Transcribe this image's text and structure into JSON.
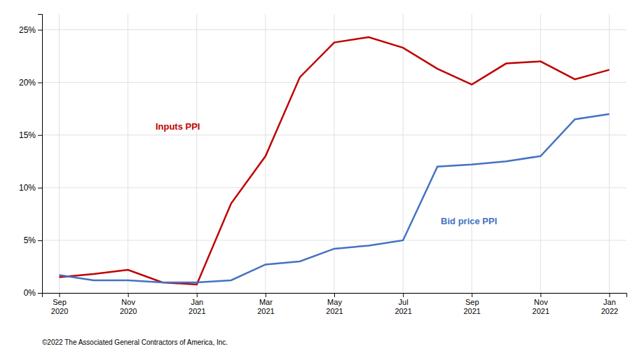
{
  "chart_data": {
    "type": "line",
    "categories": [
      "Sep\n2020",
      null,
      "Nov\n2020",
      null,
      "Jan\n2021",
      null,
      "Mar\n2021",
      null,
      "May\n2021",
      null,
      "Jul\n2021",
      null,
      "Sep\n2021",
      null,
      "Nov\n2021",
      null,
      "Jan\n2022"
    ],
    "series": [
      {
        "color": "#c00000",
        "values": [
          1.5,
          1.8,
          2.2,
          1.0,
          0.8,
          8.5,
          13.0,
          20.5,
          23.8,
          24.3,
          23.3,
          21.3,
          19.8,
          21.8,
          22.0,
          20.3,
          21.2
        ]
      },
      {
        "color": "#4472c4",
        "values": [
          1.7,
          1.2,
          1.2,
          1.0,
          1.0,
          1.2,
          2.7,
          3.0,
          4.2,
          4.5,
          5.0,
          12.0,
          12.2,
          12.5,
          13.0,
          16.5,
          17.0
        ]
      }
    ],
    "annotations": [
      {
        "text": "Inputs PPI",
        "x": 2.8,
        "y": 15.5,
        "color": "#c00000"
      },
      {
        "text": "Bid price PPI",
        "x": 11.1,
        "y": 6.5,
        "color": "#4472c4"
      }
    ],
    "ylim": [
      0,
      26.5
    ],
    "yticks": [
      {
        "value": 0,
        "label": "0%"
      },
      {
        "value": 5,
        "label": "5%"
      },
      {
        "value": 10,
        "label": "10%"
      },
      {
        "value": 15,
        "label": "15%"
      },
      {
        "value": 20,
        "label": "20%"
      },
      {
        "value": 25,
        "label": "25%"
      }
    ],
    "grid": true,
    "caption": "©2022 The Associated General Contractors of America, Inc."
  }
}
